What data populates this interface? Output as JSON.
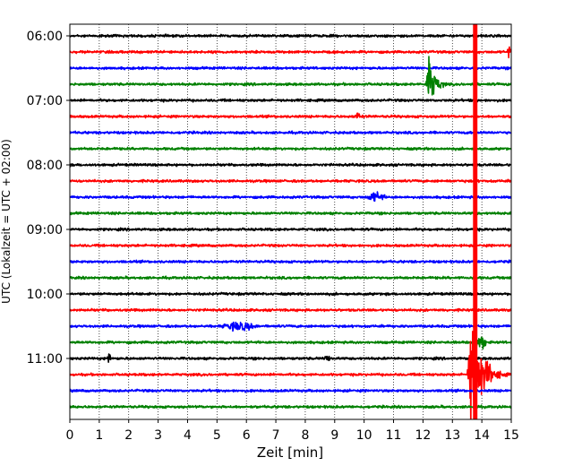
{
  "chart_data": {
    "type": "line",
    "subtype": "helicorder-seismogram",
    "xlabel": "Zeit  [min]",
    "ylabel": "UTC (Lokalzeit = UTC + 02:00)",
    "xlim": [
      0,
      15
    ],
    "x_ticks": [
      "0",
      "1",
      "2",
      "3",
      "4",
      "5",
      "6",
      "7",
      "8",
      "9",
      "10",
      "11",
      "12",
      "13",
      "14",
      "15"
    ],
    "y_ticks": [
      {
        "label": "06:00",
        "row": 0
      },
      {
        "label": "07:00",
        "row": 4
      },
      {
        "label": "08:00",
        "row": 8
      },
      {
        "label": "09:00",
        "row": 12
      },
      {
        "label": "10:00",
        "row": 16
      },
      {
        "label": "11:00",
        "row": 20
      }
    ],
    "row_count": 24,
    "row_duration_min": 15,
    "row_start": "06:00",
    "trace_color_cycle": [
      "#000000",
      "#ff0000",
      "#0000ff",
      "#008000"
    ],
    "grid": "vertical-dotted",
    "events": [
      {
        "row": 1,
        "start_min": 14.85,
        "end_min": 15.0,
        "amplitude_rows": 0.7,
        "kind": "spike"
      },
      {
        "row": 3,
        "start_min": 12.1,
        "end_min": 13.0,
        "amplitude_rows": 3.0,
        "kind": "earthquake"
      },
      {
        "row": 5,
        "start_min": 9.6,
        "end_min": 10.0,
        "amplitude_rows": 0.35,
        "kind": "burst"
      },
      {
        "row": 10,
        "start_min": 10.0,
        "end_min": 10.8,
        "amplitude_rows": 0.45,
        "kind": "burst"
      },
      {
        "row": 18,
        "start_min": 5.0,
        "end_min": 6.5,
        "amplitude_rows": 0.4,
        "kind": "burst"
      },
      {
        "row": 19,
        "start_min": 13.7,
        "end_min": 14.2,
        "amplitude_rows": 0.7,
        "kind": "burst"
      },
      {
        "row": 20,
        "start_min": 1.25,
        "end_min": 1.4,
        "amplitude_rows": 0.7,
        "kind": "spike"
      },
      {
        "row": 20,
        "start_min": 8.6,
        "end_min": 8.9,
        "amplitude_rows": 0.35,
        "kind": "burst"
      },
      {
        "row": 21,
        "start_min": 13.5,
        "end_min": 15.0,
        "amplitude_rows": 6.0,
        "kind": "earthquake"
      },
      {
        "row": 0,
        "start_min": 13.7,
        "end_min": 13.85,
        "amplitude_rows": 30.0,
        "kind": "saturated"
      }
    ]
  }
}
